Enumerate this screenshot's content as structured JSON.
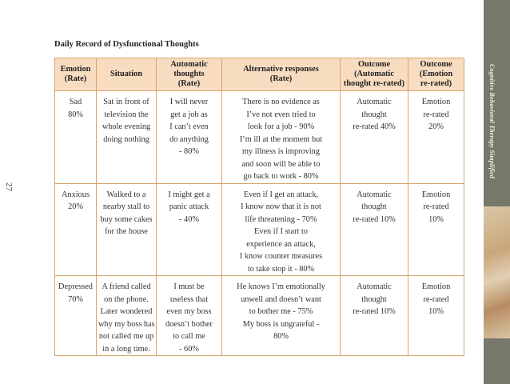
{
  "title": "Daily Record of Dysfunctional Thoughts",
  "page_number": "27",
  "side_title": "Cognitive Behavioral Therapy Simplified",
  "table": {
    "header": [
      [
        "Emotion",
        "(Rate)"
      ],
      [
        "Situation"
      ],
      [
        "Automatic",
        "thoughts",
        "(Rate)"
      ],
      [
        "Alternative responses",
        "(Rate)"
      ],
      [
        "Outcome",
        "(Automatic",
        "thought re-rated)"
      ],
      [
        "Outcome",
        "(Emotion",
        "re-rated)"
      ]
    ],
    "rows": [
      [
        [
          "Sad",
          "80%"
        ],
        [
          "Sat in front of",
          "television the",
          "whole evening",
          "doing nothing"
        ],
        [
          "I will never",
          "get a job as",
          "I can’t even",
          "do anything",
          "- 80%"
        ],
        [
          "There is no evidence as",
          "I’ve not even tried to",
          "look for a job - 90%",
          "I’m ill at the moment but",
          "my illness is improving",
          "and soon will be able to",
          "go back to work - 80%"
        ],
        [
          "Automatic",
          "thought",
          "re-rated 40%"
        ],
        [
          "Emotion",
          "re-rated",
          "20%"
        ]
      ],
      [
        [
          "Anxious",
          "20%"
        ],
        [
          "Walked to a",
          "nearby stall to",
          "buy some cakes",
          "for the house"
        ],
        [
          "I might get a",
          "panic attack",
          "- 40%"
        ],
        [
          "Even if I get an attack,",
          "I know now that it is not",
          "life threatening - 70%",
          "Even if I start to",
          "experience an attack,",
          "I know counter measures",
          "to take stop it - 80%"
        ],
        [
          "Automatic",
          "thought",
          "re-rated 10%"
        ],
        [
          "Emotion",
          "re-rated",
          "10%"
        ]
      ],
      [
        [
          "Depressed",
          "70%"
        ],
        [
          "A friend called",
          "on the phone.",
          "Later wondered",
          "why my boss has",
          "not called me up",
          "in a long time."
        ],
        [
          "I must be",
          "useless that",
          "even my boss",
          "doesn’t bother",
          "to call me",
          "- 60%"
        ],
        [
          "He knows I’m emotionally",
          "unwell and doesn’t want",
          "to bother me - 75%",
          "My boss is ungrateful -",
          "80%"
        ],
        [
          "Automatic",
          "thought",
          "re-rated 10%"
        ],
        [
          "Emotion",
          "re-rated",
          "10%"
        ]
      ]
    ]
  }
}
